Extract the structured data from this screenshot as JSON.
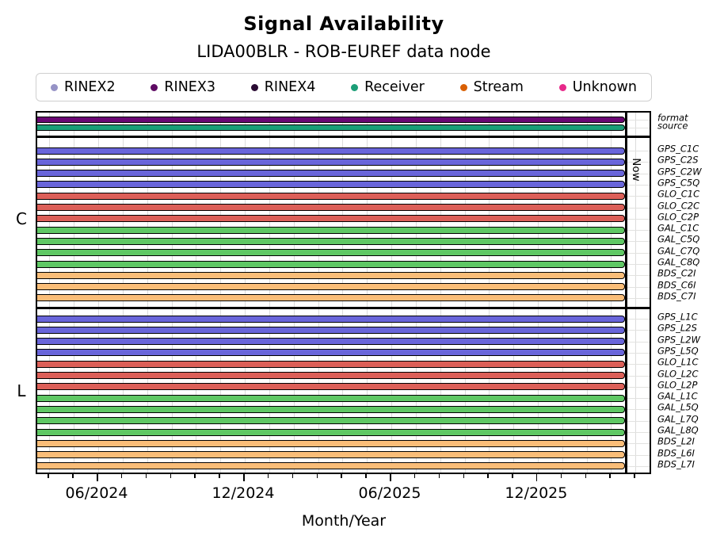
{
  "title": "Signal Availability",
  "subtitle": "LIDA00BLR - ROB-EUREF data node",
  "xlabel": "Month/Year",
  "now_label": "Now",
  "colors": {
    "gps": "#6965da",
    "glo": "#dc5f58",
    "gal": "#5fc864",
    "bds": "#fabd78",
    "format_bar": "#6a0673",
    "source_bar": "#1a9e78",
    "grid": "#dcdcdc",
    "bar_border": "#000000"
  },
  "legend": [
    {
      "label": "RINEX2",
      "color": "#9693c6"
    },
    {
      "label": "RINEX3",
      "color": "#5e0a63"
    },
    {
      "label": "RINEX4",
      "color": "#2a0b33"
    },
    {
      "label": "Receiver",
      "color": "#1b9e77"
    },
    {
      "label": "Stream",
      "color": "#d95f02"
    },
    {
      "label": "Unknown",
      "color": "#e7298a"
    }
  ],
  "x_axis": {
    "major_ticks": [
      "06/2024",
      "12/2024",
      "06/2025",
      "12/2025"
    ],
    "minor_tick_interval": "1 month"
  },
  "sections": [
    {
      "id": "meta",
      "side_label": "",
      "rows": [
        {
          "label": "format",
          "color": "#6a0673"
        },
        {
          "label": "source",
          "color": "#1a9e78"
        }
      ]
    },
    {
      "id": "C",
      "side_label": "C",
      "rows": [
        {
          "label": "GPS_C1C",
          "color": "#6965da"
        },
        {
          "label": "GPS_C2S",
          "color": "#6965da"
        },
        {
          "label": "GPS_C2W",
          "color": "#6965da"
        },
        {
          "label": "GPS_C5Q",
          "color": "#6965da"
        },
        {
          "label": "GLO_C1C",
          "color": "#dc5f58"
        },
        {
          "label": "GLO_C2C",
          "color": "#dc5f58"
        },
        {
          "label": "GLO_C2P",
          "color": "#dc5f58"
        },
        {
          "label": "GAL_C1C",
          "color": "#5fc864"
        },
        {
          "label": "GAL_C5Q",
          "color": "#5fc864"
        },
        {
          "label": "GAL_C7Q",
          "color": "#5fc864"
        },
        {
          "label": "GAL_C8Q",
          "color": "#5fc864"
        },
        {
          "label": "BDS_C2I",
          "color": "#fabd78"
        },
        {
          "label": "BDS_C6I",
          "color": "#fabd78"
        },
        {
          "label": "BDS_C7I",
          "color": "#fabd78"
        }
      ]
    },
    {
      "id": "L",
      "side_label": "L",
      "rows": [
        {
          "label": "GPS_L1C",
          "color": "#6965da"
        },
        {
          "label": "GPS_L2S",
          "color": "#6965da"
        },
        {
          "label": "GPS_L2W",
          "color": "#6965da"
        },
        {
          "label": "GPS_L5Q",
          "color": "#6965da"
        },
        {
          "label": "GLO_L1C",
          "color": "#dc5f58"
        },
        {
          "label": "GLO_L2C",
          "color": "#dc5f58"
        },
        {
          "label": "GLO_L2P",
          "color": "#dc5f58"
        },
        {
          "label": "GAL_L1C",
          "color": "#5fc864"
        },
        {
          "label": "GAL_L5Q",
          "color": "#5fc864"
        },
        {
          "label": "GAL_L7Q",
          "color": "#5fc864"
        },
        {
          "label": "GAL_L8Q",
          "color": "#5fc864"
        },
        {
          "label": "BDS_L2I",
          "color": "#fabd78"
        },
        {
          "label": "BDS_L6I",
          "color": "#fabd78"
        },
        {
          "label": "BDS_L7I",
          "color": "#fabd78"
        }
      ]
    }
  ],
  "chart_data": {
    "type": "bar",
    "orientation": "horizontal-timeline",
    "title": "Signal Availability",
    "subtitle": "LIDA00BLR - ROB-EUREF data node",
    "xlabel": "Month/Year",
    "x_tick_labels": [
      "06/2024",
      "12/2024",
      "06/2025",
      "12/2025"
    ],
    "x_minor_tick_interval": "1 month",
    "x_range_visible": [
      "~2024-03",
      "~2026-04"
    ],
    "now_marker": "~2026-03",
    "legend_entries": [
      "RINEX2",
      "RINEX3",
      "RINEX4",
      "Receiver",
      "Stream",
      "Unknown"
    ],
    "grid": true,
    "legend_position": "top",
    "rows": [
      {
        "group": "meta",
        "label": "format",
        "category": "RINEX3",
        "start": "plot_start",
        "end": "Now"
      },
      {
        "group": "meta",
        "label": "source",
        "category": "Receiver",
        "start": "plot_start",
        "end": "Now"
      },
      {
        "group": "C",
        "label": "GPS_C1C",
        "constellation": "GPS",
        "start": "plot_start",
        "end": "Now"
      },
      {
        "group": "C",
        "label": "GPS_C2S",
        "constellation": "GPS",
        "start": "plot_start",
        "end": "Now"
      },
      {
        "group": "C",
        "label": "GPS_C2W",
        "constellation": "GPS",
        "start": "plot_start",
        "end": "Now"
      },
      {
        "group": "C",
        "label": "GPS_C5Q",
        "constellation": "GPS",
        "start": "plot_start",
        "end": "Now"
      },
      {
        "group": "C",
        "label": "GLO_C1C",
        "constellation": "GLO",
        "start": "plot_start",
        "end": "Now"
      },
      {
        "group": "C",
        "label": "GLO_C2C",
        "constellation": "GLO",
        "start": "plot_start",
        "end": "Now"
      },
      {
        "group": "C",
        "label": "GLO_C2P",
        "constellation": "GLO",
        "start": "plot_start",
        "end": "Now"
      },
      {
        "group": "C",
        "label": "GAL_C1C",
        "constellation": "GAL",
        "start": "plot_start",
        "end": "Now"
      },
      {
        "group": "C",
        "label": "GAL_C5Q",
        "constellation": "GAL",
        "start": "plot_start",
        "end": "Now"
      },
      {
        "group": "C",
        "label": "GAL_C7Q",
        "constellation": "GAL",
        "start": "plot_start",
        "end": "Now"
      },
      {
        "group": "C",
        "label": "GAL_C8Q",
        "constellation": "GAL",
        "start": "plot_start",
        "end": "Now"
      },
      {
        "group": "C",
        "label": "BDS_C2I",
        "constellation": "BDS",
        "start": "plot_start",
        "end": "Now"
      },
      {
        "group": "C",
        "label": "BDS_C6I",
        "constellation": "BDS",
        "start": "plot_start",
        "end": "Now"
      },
      {
        "group": "C",
        "label": "BDS_C7I",
        "constellation": "BDS",
        "start": "plot_start",
        "end": "Now"
      },
      {
        "group": "L",
        "label": "GPS_L1C",
        "constellation": "GPS",
        "start": "plot_start",
        "end": "Now"
      },
      {
        "group": "L",
        "label": "GPS_L2S",
        "constellation": "GPS",
        "start": "plot_start",
        "end": "Now"
      },
      {
        "group": "L",
        "label": "GPS_L2W",
        "constellation": "GPS",
        "start": "plot_start",
        "end": "Now"
      },
      {
        "group": "L",
        "label": "GPS_L5Q",
        "constellation": "GPS",
        "start": "plot_start",
        "end": "Now"
      },
      {
        "group": "L",
        "label": "GLO_L1C",
        "constellation": "GLO",
        "start": "plot_start",
        "end": "Now"
      },
      {
        "group": "L",
        "label": "GLO_L2C",
        "constellation": "GLO",
        "start": "plot_start",
        "end": "Now"
      },
      {
        "group": "L",
        "label": "GLO_L2P",
        "constellation": "GLO",
        "start": "plot_start",
        "end": "Now"
      },
      {
        "group": "L",
        "label": "GAL_L1C",
        "constellation": "GAL",
        "start": "plot_start",
        "end": "Now"
      },
      {
        "group": "L",
        "label": "GAL_L5Q",
        "constellation": "GAL",
        "start": "plot_start",
        "end": "Now"
      },
      {
        "group": "L",
        "label": "GAL_L7Q",
        "constellation": "GAL",
        "start": "plot_start",
        "end": "Now"
      },
      {
        "group": "L",
        "label": "GAL_L8Q",
        "constellation": "GAL",
        "start": "plot_start",
        "end": "Now"
      },
      {
        "group": "L",
        "label": "BDS_L2I",
        "constellation": "BDS",
        "start": "plot_start",
        "end": "Now"
      },
      {
        "group": "L",
        "label": "BDS_L6I",
        "constellation": "BDS",
        "start": "plot_start",
        "end": "Now"
      },
      {
        "group": "L",
        "label": "BDS_L7I",
        "constellation": "BDS",
        "start": "plot_start",
        "end": "Now"
      }
    ]
  }
}
